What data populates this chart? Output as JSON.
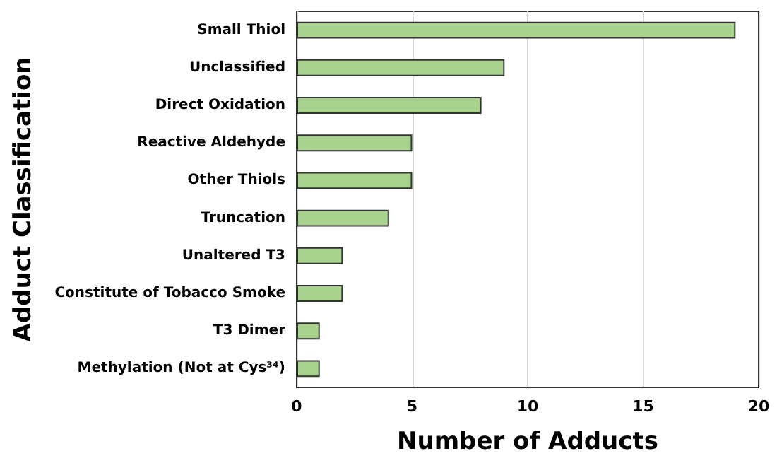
{
  "chart_data": {
    "type": "bar",
    "orientation": "horizontal",
    "xlabel": "Number of Adducts",
    "ylabel": "Adduct Classification",
    "categories": [
      "Small Thiol",
      "Unclassified",
      "Direct Oxidation",
      "Reactive Aldehyde",
      "Other Thiols",
      "Truncation",
      "Unaltered T3",
      "Constitute of Tobacco Smoke",
      "T3 Dimer",
      "Methylation (Not at Cys³⁴)"
    ],
    "values": [
      19,
      9,
      8,
      5,
      5,
      4,
      2,
      2,
      1,
      1
    ],
    "color": "#a9d18e",
    "xlim": [
      0,
      20
    ],
    "xticks": [
      0,
      5,
      10,
      15,
      20
    ],
    "grid": "x"
  }
}
